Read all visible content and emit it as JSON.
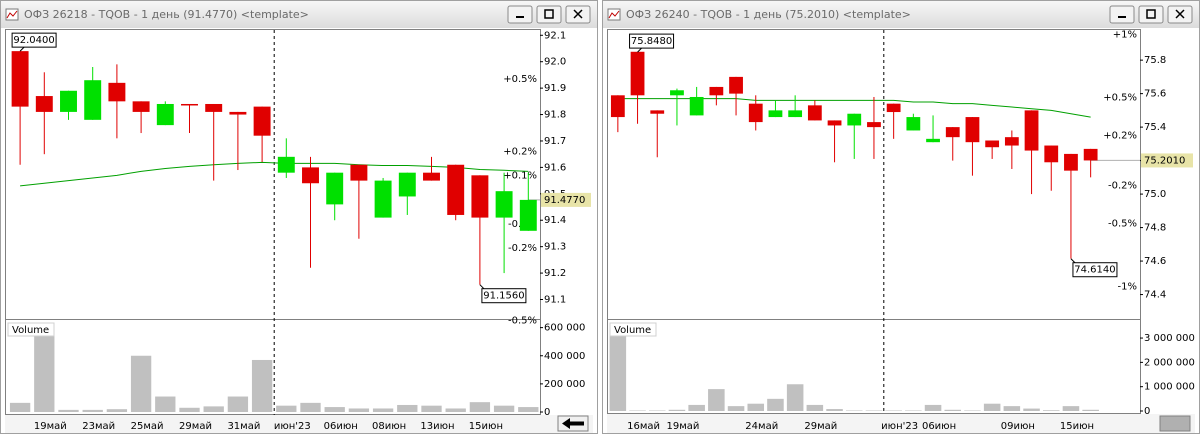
{
  "chart_data": [
    {
      "type": "candlestick",
      "title": "ОФЗ 26218 - TQOB - 1 день (91.4770) <template>",
      "categories": [
        null,
        "19май",
        null,
        "23май",
        null,
        "25май",
        null,
        "29май",
        null,
        "31май",
        null,
        "июн'23",
        null,
        "06июн",
        null,
        "08июн",
        null,
        "13июн",
        null,
        "15июн",
        null,
        null
      ],
      "open": [
        92.04,
        91.87,
        91.81,
        91.78,
        91.92,
        91.85,
        91.76,
        91.84,
        91.84,
        91.81,
        91.83,
        91.58,
        91.6,
        91.46,
        91.61,
        91.41,
        91.49,
        91.58,
        91.61,
        91.57,
        91.41,
        91.36
      ],
      "high": [
        92.04,
        91.96,
        91.89,
        91.98,
        91.99,
        91.85,
        91.85,
        91.84,
        91.84,
        91.81,
        91.83,
        91.71,
        91.64,
        91.58,
        91.61,
        91.56,
        91.58,
        91.64,
        91.61,
        91.57,
        91.58,
        91.58
      ],
      "low": [
        91.61,
        91.65,
        91.78,
        91.78,
        91.71,
        91.73,
        91.76,
        91.73,
        91.55,
        91.59,
        91.62,
        91.56,
        91.22,
        91.4,
        91.33,
        91.41,
        91.42,
        91.55,
        91.4,
        91.156,
        91.2,
        91.36
      ],
      "close": [
        91.83,
        91.81,
        91.89,
        91.93,
        91.85,
        91.81,
        91.84,
        91.84,
        91.81,
        91.8,
        91.72,
        91.64,
        91.54,
        91.58,
        91.55,
        91.55,
        91.58,
        91.55,
        91.42,
        91.41,
        91.51,
        91.477
      ],
      "up_color": "#00e000",
      "down_color": "#e00000",
      "ma": {
        "color": "#00a000",
        "values": [
          91.53,
          91.54,
          91.55,
          91.56,
          91.57,
          91.585,
          91.596,
          91.604,
          91.61,
          91.615,
          91.619,
          91.615,
          91.615,
          91.615,
          91.61,
          91.607,
          91.607,
          91.604,
          91.6,
          91.592,
          91.589,
          91.585
        ]
      },
      "ylim": [
        91.03,
        92.12
      ],
      "yticks": [
        91.1,
        91.2,
        91.3,
        91.4,
        91.5,
        91.6,
        91.7,
        91.8,
        91.9,
        {
          "value": 92,
          "label": "92.0"
        },
        92.1
      ],
      "percent_levels": [
        {
          "value": 91.934,
          "label": "+0.5%",
          "color": "#00a000"
        },
        {
          "value": 91.66,
          "label": "+0.2%",
          "color": "#00a000"
        },
        {
          "value": 91.569,
          "label": "+0.1%",
          "color": "#00a000"
        },
        {
          "value": 91.386,
          "label": "-0.1%",
          "color": "#e00000"
        },
        {
          "value": 91.294,
          "label": "-0.2%",
          "color": "#e00000"
        },
        {
          "value": 91.02,
          "label": "-0.5%",
          "color": "#e00000"
        }
      ],
      "high_marker": {
        "value": 92.04,
        "label": "92.0400"
      },
      "low_marker": {
        "value": 91.156,
        "label": "91.1560"
      },
      "last_price": {
        "value": 91.477,
        "label": "91.4770"
      },
      "volume": {
        "label": "Volume",
        "color": "#c0c0c0",
        "values": [
          65000,
          600000,
          15000,
          15000,
          20000,
          400000,
          110000,
          30000,
          40000,
          110000,
          370000,
          45000,
          65000,
          35000,
          25000,
          25000,
          50000,
          45000,
          25000,
          70000,
          45000,
          35000
        ],
        "ylim": [
          0,
          640000
        ],
        "yticks": [
          0,
          {
            "value": 200000,
            "label": "200 000"
          },
          {
            "value": 400000,
            "label": "400 000"
          },
          {
            "value": 600000,
            "label": "600 000"
          }
        ]
      }
    },
    {
      "type": "candlestick",
      "title": "ОФЗ 26240 - TQOB - 1 день (75.2010) <template>",
      "categories": [
        null,
        "16май",
        null,
        "19май",
        null,
        null,
        null,
        "24май",
        null,
        null,
        "29май",
        null,
        null,
        null,
        "июн'23",
        null,
        "06июн",
        null,
        null,
        null,
        "09июн",
        null,
        null,
        "15июн",
        null
      ],
      "open": [
        75.59,
        75.85,
        75.5,
        75.59,
        75.47,
        75.64,
        75.7,
        75.54,
        75.46,
        75.46,
        75.53,
        75.44,
        75.41,
        75.43,
        75.54,
        75.38,
        75.31,
        75.4,
        75.46,
        75.32,
        75.34,
        75.5,
        75.29,
        75.24,
        75.27
      ],
      "high": [
        75.59,
        75.848,
        75.5,
        75.63,
        75.64,
        75.64,
        75.7,
        75.59,
        75.56,
        75.59,
        75.56,
        75.44,
        75.48,
        75.58,
        75.54,
        75.48,
        75.47,
        75.4,
        75.46,
        75.32,
        75.38,
        75.5,
        75.29,
        75.24,
        75.27
      ],
      "low": [
        75.37,
        75.42,
        75.22,
        75.41,
        75.47,
        75.53,
        75.47,
        75.38,
        75.46,
        75.46,
        75.44,
        75.19,
        75.21,
        75.21,
        75.33,
        75.38,
        75.31,
        75.2,
        75.11,
        75.21,
        75.15,
        75.0,
        75.02,
        74.614,
        75.1
      ],
      "close": [
        75.46,
        75.59,
        75.48,
        75.62,
        75.58,
        75.59,
        75.6,
        75.43,
        75.5,
        75.5,
        75.44,
        75.41,
        75.48,
        75.4,
        75.49,
        75.46,
        75.33,
        75.34,
        75.31,
        75.28,
        75.29,
        75.26,
        75.19,
        75.14,
        75.201
      ],
      "up_color": "#00e000",
      "down_color": "#e00000",
      "ma": {
        "color": "#00a000",
        "values": [
          75.57,
          75.57,
          75.57,
          75.57,
          75.57,
          75.57,
          75.57,
          75.56,
          75.56,
          75.56,
          75.56,
          75.56,
          75.56,
          75.56,
          75.56,
          75.55,
          75.55,
          75.54,
          75.54,
          75.53,
          75.52,
          75.51,
          75.5,
          75.48,
          75.46
        ]
      },
      "ylim": [
        74.26,
        75.98
      ],
      "yticks": [
        74.4,
        74.6,
        74.8,
        {
          "value": 75,
          "label": "75.0"
        },
        75.2,
        75.4,
        75.6,
        75.8
      ],
      "percent_levels": [
        {
          "value": 75.953,
          "label": "+1%",
          "color": "#00a000"
        },
        {
          "value": 75.577,
          "label": "+0.5%",
          "color": "#00a000"
        },
        {
          "value": 75.351,
          "label": "+0.2%",
          "color": "#00a000"
        },
        {
          "value": 75.051,
          "label": "-0.2%",
          "color": "#e00000"
        },
        {
          "value": 74.825,
          "label": "-0.5%",
          "color": "#e00000"
        },
        {
          "value": 74.449,
          "label": "-1%",
          "color": "#e00000"
        }
      ],
      "high_marker": {
        "value": 75.848,
        "label": "75.8480"
      },
      "low_marker": {
        "value": 74.614,
        "label": "74.6140"
      },
      "last_price": {
        "value": 75.201,
        "label": "75.2010"
      },
      "volume": {
        "label": "Volume",
        "color": "#c0c0c0",
        "values": [
          3300000,
          20000,
          20000,
          50000,
          250000,
          900000,
          200000,
          300000,
          500000,
          1100000,
          250000,
          80000,
          20000,
          20000,
          20000,
          20000,
          250000,
          50000,
          20000,
          300000,
          200000,
          100000,
          30000,
          200000,
          50000
        ],
        "ylim": [
          0,
          3660000
        ],
        "yticks": [
          0,
          {
            "value": 1000000,
            "label": "1 000 000"
          },
          {
            "value": 2000000,
            "label": "2 000 000"
          },
          {
            "value": 3000000,
            "label": "3 000 000"
          }
        ]
      }
    }
  ]
}
